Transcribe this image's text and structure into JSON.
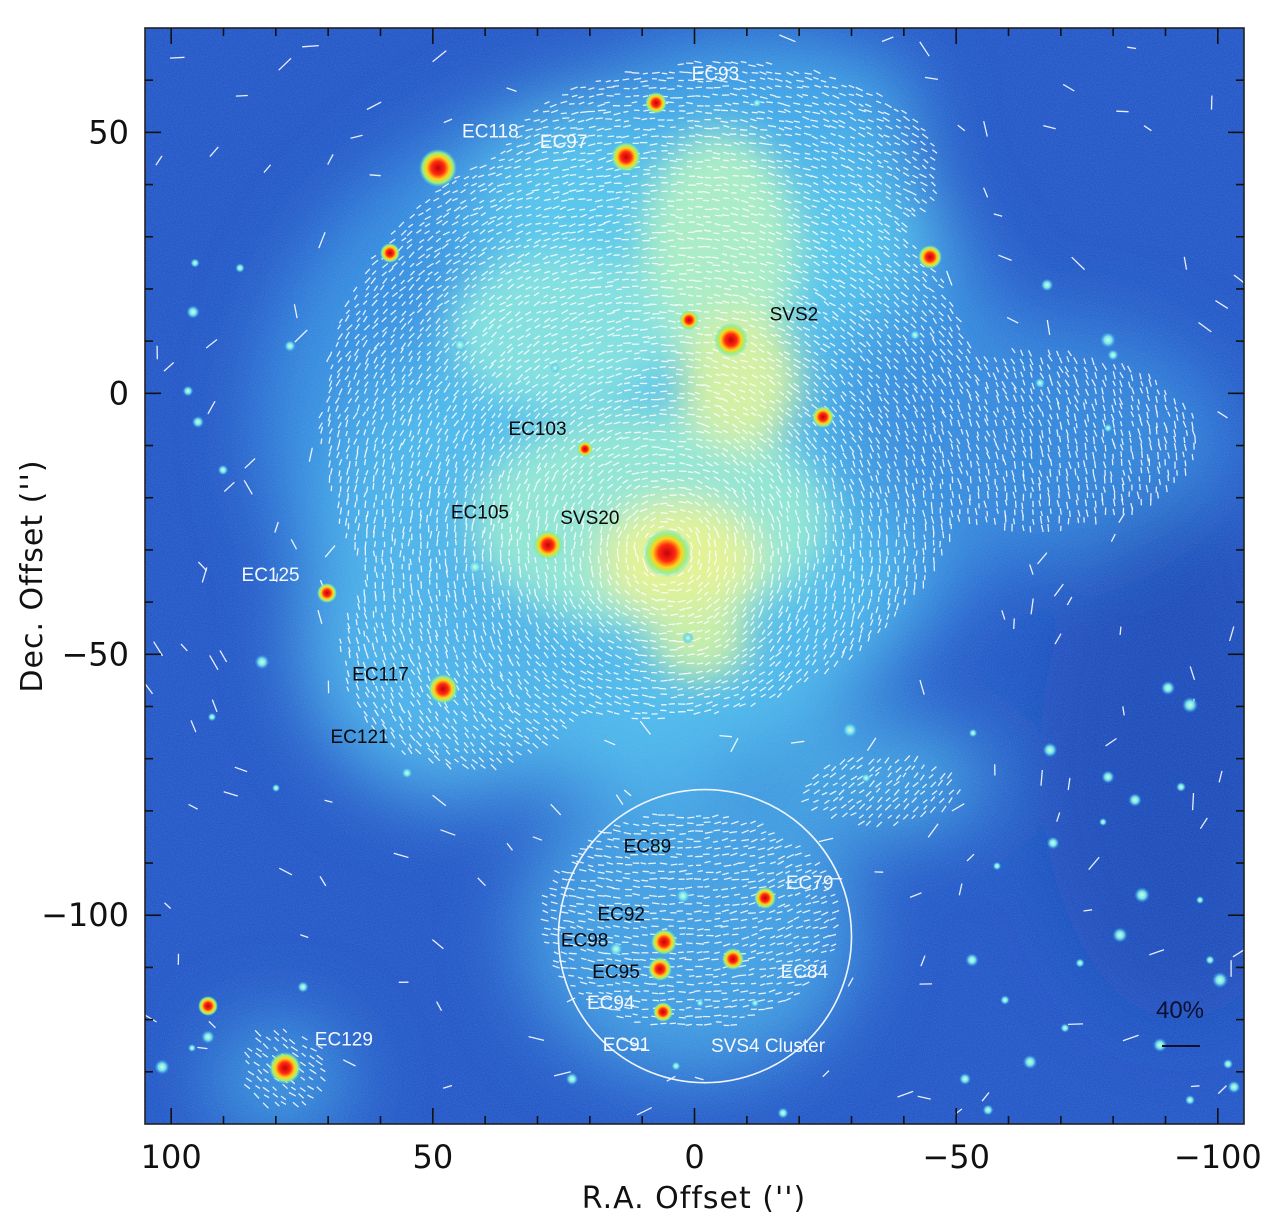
{
  "axes": {
    "xlabel": "R.A. Offset ('')",
    "ylabel": "Dec. Offset ('')",
    "x_range": [
      105,
      -105
    ],
    "y_range": [
      -140,
      70
    ],
    "x_ticks": [
      100,
      50,
      0,
      -50,
      -100
    ],
    "x_tick_labels": [
      "100",
      "50",
      "0",
      "−50",
      "−100"
    ],
    "y_ticks": [
      50,
      0,
      -50,
      -100
    ],
    "y_tick_labels": [
      "50",
      "0",
      "−50",
      "−100"
    ]
  },
  "colormap": {
    "background": "#1a4fc4",
    "nebula_inner": "#d8f28a",
    "nebula_mid": "#5fd8e8",
    "star_core": "#e8121a",
    "vector_color": "#ffffff"
  },
  "sources": [
    {
      "name": "EC93",
      "x": -4,
      "y": 60,
      "tone": "light"
    },
    {
      "name": "EC118",
      "x": 39,
      "y": 49,
      "tone": "light"
    },
    {
      "name": "EC97",
      "x": 25,
      "y": 47,
      "tone": "light"
    },
    {
      "name": "SVS2",
      "x": -19,
      "y": 14,
      "tone": "dark"
    },
    {
      "name": "EC103",
      "x": 30,
      "y": -8,
      "tone": "dark"
    },
    {
      "name": "EC105",
      "x": 41,
      "y": -24,
      "tone": "dark"
    },
    {
      "name": "SVS20",
      "x": 20,
      "y": -25,
      "tone": "dark"
    },
    {
      "name": "EC125",
      "x": 81,
      "y": -36,
      "tone": "light"
    },
    {
      "name": "EC117",
      "x": 60,
      "y": -55,
      "tone": "dark"
    },
    {
      "name": "EC121",
      "x": 64,
      "y": -67,
      "tone": "dark"
    },
    {
      "name": "EC89",
      "x": 9,
      "y": -88,
      "tone": "dark"
    },
    {
      "name": "EC79",
      "x": -22,
      "y": -95,
      "tone": "light"
    },
    {
      "name": "EC92",
      "x": 14,
      "y": -101,
      "tone": "dark"
    },
    {
      "name": "EC98",
      "x": 21,
      "y": -106,
      "tone": "dark"
    },
    {
      "name": "EC84",
      "x": -21,
      "y": -112,
      "tone": "light"
    },
    {
      "name": "EC95",
      "x": 15,
      "y": -112,
      "tone": "dark"
    },
    {
      "name": "EC94",
      "x": 16,
      "y": -118,
      "tone": "light"
    },
    {
      "name": "EC91",
      "x": 13,
      "y": -126,
      "tone": "light"
    },
    {
      "name": "EC129",
      "x": 67,
      "y": -125,
      "tone": "light"
    }
  ],
  "cluster": {
    "label": "SVS4 Cluster",
    "center_x": -2,
    "center_y": -104,
    "radius": 28
  },
  "scale_bar": {
    "label": "40%"
  }
}
